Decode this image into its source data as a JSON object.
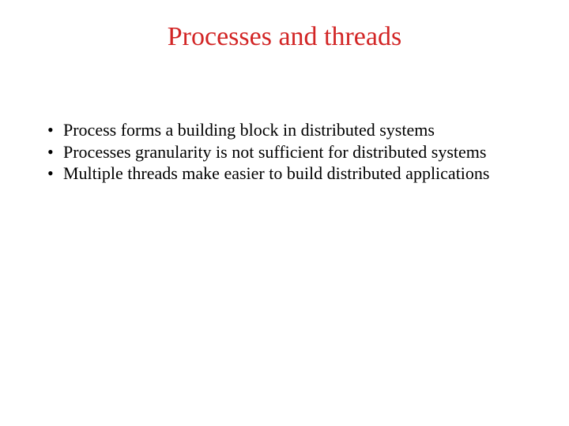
{
  "slide": {
    "title": "Processes and threads",
    "title_color": "#d22525",
    "title_fontsize": 34,
    "background_color": "#ffffff",
    "bullet_color": "#000000",
    "bullet_fontsize": 22,
    "bullets": [
      "Process forms a building block in distributed systems",
      "Processes granularity is not sufficient for distributed systems",
      "Multiple threads make easier to build distributed applications"
    ]
  }
}
